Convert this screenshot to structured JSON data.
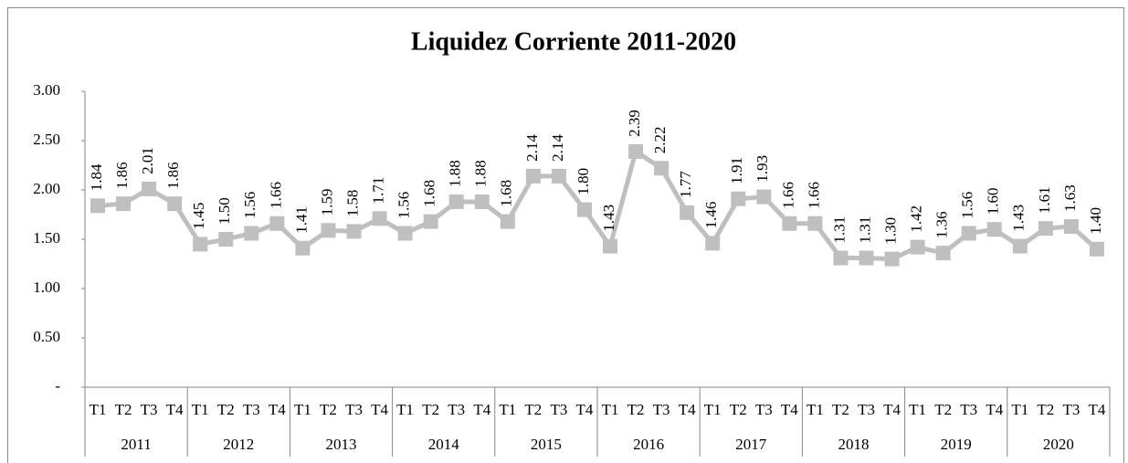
{
  "chart_data": {
    "type": "line",
    "title": "Liquidez Corriente 2011-2020",
    "categories": [
      "T1",
      "T2",
      "T3",
      "T4",
      "T1",
      "T2",
      "T3",
      "T4",
      "T1",
      "T2",
      "T3",
      "T4",
      "T1",
      "T2",
      "T3",
      "T4",
      "T1",
      "T2",
      "T3",
      "T4",
      "T1",
      "T2",
      "T3",
      "T4",
      "T1",
      "T2",
      "T3",
      "T4",
      "T1",
      "T2",
      "T3",
      "T4",
      "T1",
      "T2",
      "T3",
      "T4",
      "T1",
      "T2",
      "T3",
      "T4"
    ],
    "groups": [
      "2011",
      "2012",
      "2013",
      "2014",
      "2015",
      "2016",
      "2017",
      "2018",
      "2019",
      "2020"
    ],
    "values": [
      1.84,
      1.86,
      2.01,
      1.86,
      1.45,
      1.5,
      1.56,
      1.66,
      1.41,
      1.59,
      1.58,
      1.71,
      1.56,
      1.68,
      1.88,
      1.88,
      1.68,
      2.14,
      2.14,
      1.8,
      1.43,
      2.39,
      2.22,
      1.77,
      1.46,
      1.91,
      1.93,
      1.66,
      1.66,
      1.31,
      1.31,
      1.3,
      1.42,
      1.36,
      1.56,
      1.6,
      1.43,
      1.61,
      1.63,
      1.4
    ],
    "value_labels": [
      "1.84",
      "1.86",
      "2.01",
      "1.86",
      "1.45",
      "1.50",
      "1.56",
      "1.66",
      "1.41",
      "1.59",
      "1.58",
      "1.71",
      "1.56",
      "1.68",
      "1.88",
      "1.88",
      "1.68",
      "2.14",
      "2.14",
      "1.80",
      "1.43",
      "2.39",
      "2.22",
      "1.77",
      "1.46",
      "1.91",
      "1.93",
      "1.66",
      "1.66",
      "1.31",
      "1.31",
      "1.30",
      "1.42",
      "1.36",
      "1.56",
      "1.60",
      "1.43",
      "1.61",
      "1.63",
      "1.40"
    ],
    "color": "#bfbfbf",
    "ylim": [
      0,
      3
    ],
    "yticks": [
      {
        "value": 0,
        "label": "-"
      },
      {
        "value": 0.5,
        "label": "0.50"
      },
      {
        "value": 1,
        "label": "1.00"
      },
      {
        "value": 1.5,
        "label": "1.50"
      },
      {
        "value": 2,
        "label": "2.00"
      },
      {
        "value": 2.5,
        "label": "2.50"
      },
      {
        "value": 3,
        "label": "3.00"
      }
    ],
    "grid": false
  }
}
